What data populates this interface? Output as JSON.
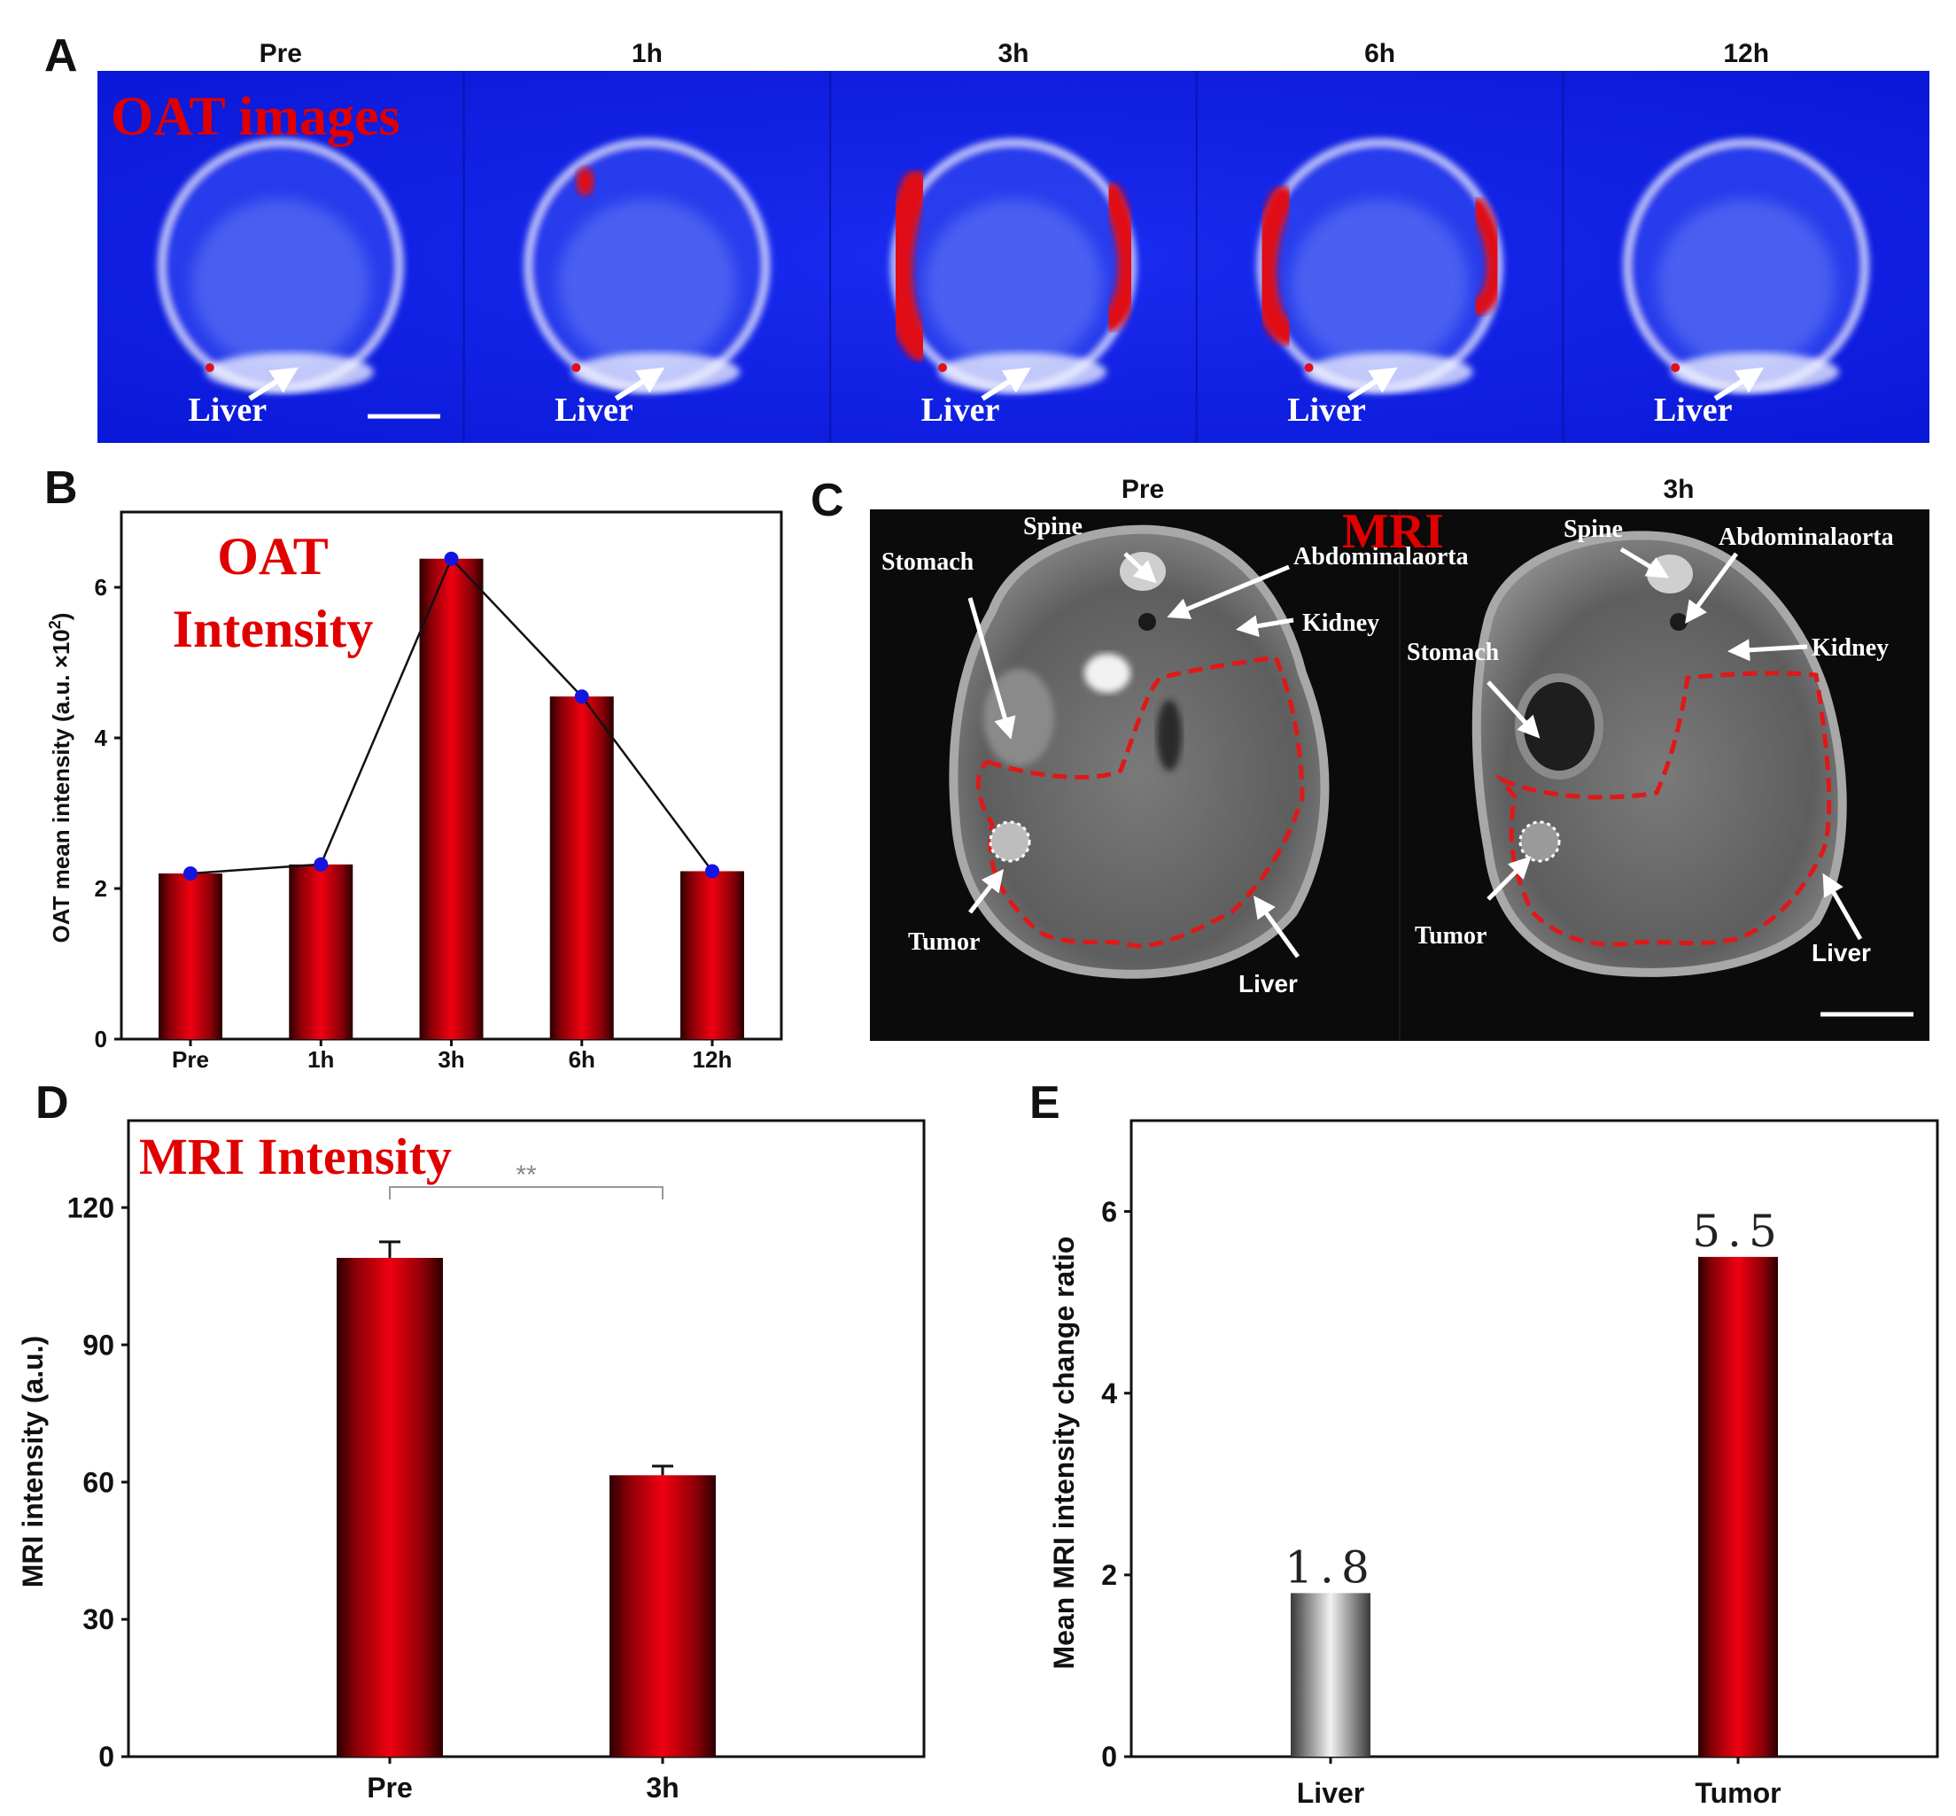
{
  "panel_a": {
    "letter": "A",
    "title": "OAT images",
    "organ_label": "Liver",
    "frames": [
      {
        "time": "Pre",
        "uptake": 0.05
      },
      {
        "time": "1h",
        "uptake": 0.12
      },
      {
        "time": "3h",
        "uptake": 0.95
      },
      {
        "time": "6h",
        "uptake": 0.75
      },
      {
        "time": "12h",
        "uptake": 0.04
      }
    ]
  },
  "panel_c": {
    "letter": "C",
    "title": "MRI",
    "pre": {
      "time": "Pre",
      "labels": {
        "spine": "Spine",
        "stomach": "Stomach",
        "abdominal_aorta": "Abdominalaorta",
        "kidney": "Kidney",
        "tumor": "Tumor",
        "liver": "Liver"
      }
    },
    "post": {
      "time": "3h",
      "labels": {
        "spine": "Spine",
        "stomach": "Stomach",
        "abdominal_aorta": "Abdominalaorta",
        "kidney": "Kidney",
        "tumor": "Tumor",
        "liver": "Liver"
      }
    }
  },
  "chart_data": [
    {
      "panel": "B",
      "type": "bar",
      "title": "OAT Intensity",
      "title_lines": [
        "OAT",
        "Intensity"
      ],
      "categories": [
        "Pre",
        "1h",
        "3h",
        "6h",
        "12h"
      ],
      "values": [
        2.2,
        2.32,
        6.38,
        4.55,
        2.23
      ],
      "line_overlay": true,
      "xlabel": "",
      "ylabel": "OAT mean  intensity (a.u. ×10",
      "ylabel_sup": "2",
      "ylabel_close": ")",
      "ylim": [
        0,
        7
      ],
      "yticks": [
        0,
        2,
        4,
        6
      ],
      "ytick_labels": [
        "0",
        "2",
        "4",
        "6"
      ]
    },
    {
      "panel": "D",
      "type": "bar",
      "title": "MRI Intensity",
      "categories": [
        "Pre",
        "3h"
      ],
      "values": [
        109,
        61.5
      ],
      "errors": [
        3.5,
        2.0
      ],
      "significance": "**",
      "xlabel": "",
      "ylabel": "MRI intensity (a.u.)",
      "ylim": [
        0,
        139
      ],
      "yticks": [
        0,
        30,
        60,
        90,
        120
      ],
      "ytick_labels": [
        "0",
        "30",
        "60",
        "90",
        "120"
      ]
    },
    {
      "panel": "E",
      "type": "bar",
      "title": "",
      "categories": [
        "Liver",
        "Tumor"
      ],
      "values": [
        1.8,
        5.5
      ],
      "data_labels": [
        "1.8",
        "5.5"
      ],
      "bar_colors": [
        "gray",
        "red"
      ],
      "xlabel": "",
      "ylabel": "Mean MRI intensity change ratio",
      "ylim": [
        0,
        7
      ],
      "yticks": [
        0,
        2,
        4,
        6
      ],
      "ytick_labels": [
        "0",
        "2",
        "4",
        "6"
      ]
    }
  ]
}
